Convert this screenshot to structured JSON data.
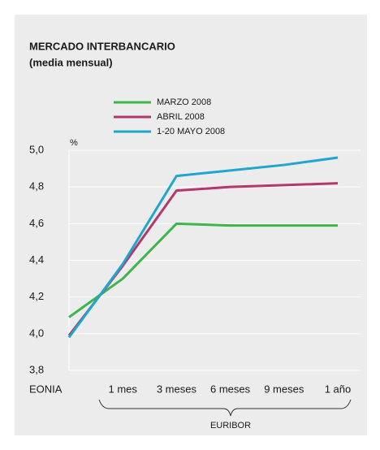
{
  "chart_data": {
    "type": "line",
    "title": "MERCADO INTERBANCARIO",
    "subtitle": "(media mensual)",
    "y_label": "%",
    "group_label": "EURIBOR",
    "categories": [
      "EONIA",
      "1 mes",
      "3 meses",
      "6 meses",
      "9 meses",
      "1 año"
    ],
    "series": [
      {
        "name": "MARZO 2008",
        "color": "#3db54a",
        "values": [
          4.09,
          4.3,
          4.6,
          4.59,
          4.59,
          4.59
        ]
      },
      {
        "name": "ABRIL 2008",
        "color": "#b3386b",
        "values": [
          3.99,
          4.37,
          4.78,
          4.8,
          4.81,
          4.82
        ]
      },
      {
        "name": "1-20 MAYO 2008",
        "color": "#1fa6cf",
        "values": [
          3.98,
          4.38,
          4.86,
          4.89,
          4.92,
          4.96
        ]
      }
    ],
    "ylim": [
      3.8,
      5.0
    ],
    "yticks": [
      {
        "value": 3.8,
        "label": "3,8"
      },
      {
        "value": 4.0,
        "label": "4,0"
      },
      {
        "value": 4.2,
        "label": "4,2"
      },
      {
        "value": 4.4,
        "label": "4,4"
      },
      {
        "value": 4.6,
        "label": "4,6"
      },
      {
        "value": 4.8,
        "label": "4,8"
      },
      {
        "value": 5.0,
        "label": "5,0"
      }
    ],
    "grid": true
  }
}
